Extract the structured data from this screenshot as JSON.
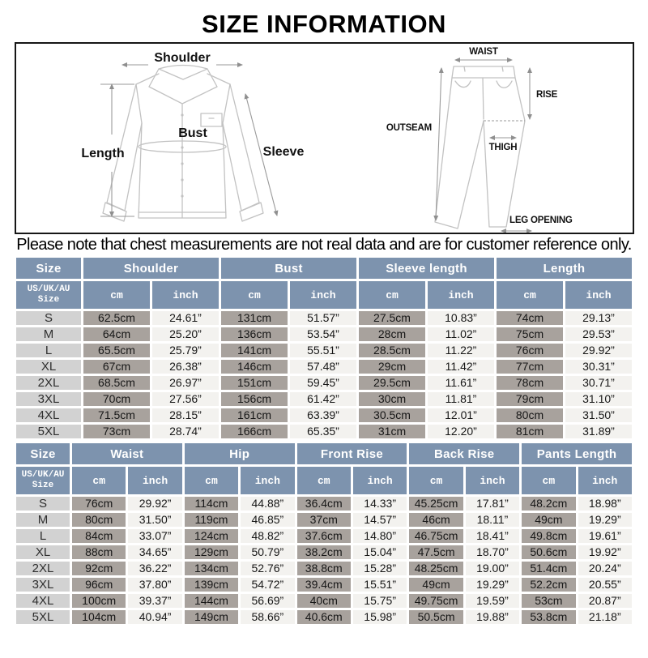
{
  "title": "SIZE INFORMATION",
  "note": "Please note that chest measurements are not real data and are for customer reference only.",
  "colors": {
    "header_bg": "#7d93ae",
    "header_text": "#ffffff",
    "size_col_bg": "#d2d2d2",
    "cm_cell_bg": "#a8a29d",
    "inch_cell_bg": "#f3f2ef"
  },
  "diagram": {
    "shirt": {
      "shoulder": "Shoulder",
      "length": "Length",
      "bust": "Bust",
      "sleeve": "Sleeve"
    },
    "pants": {
      "waist": "WAIST",
      "rise": "RISE",
      "outseam": "OUTSEAM",
      "thigh": "THIGH",
      "leg_opening": "LEG OPENING"
    }
  },
  "shirt_table": {
    "group_headers": [
      {
        "label": "Size",
        "span": 1
      },
      {
        "label": "Shoulder",
        "span": 2
      },
      {
        "label": "Bust",
        "span": 2
      },
      {
        "label": "Sleeve length",
        "span": 2
      },
      {
        "label": "Length",
        "span": 2
      }
    ],
    "sub_headers": [
      "US/UK/AU\nSize",
      "cm",
      "inch",
      "cm",
      "inch",
      "cm",
      "inch",
      "cm",
      "inch"
    ],
    "rows": [
      {
        "size": "S",
        "values": [
          "62.5cm",
          "24.61”",
          "131cm",
          "51.57”",
          "27.5cm",
          "10.83”",
          "74cm",
          "29.13”"
        ]
      },
      {
        "size": "M",
        "values": [
          "64cm",
          "25.20”",
          "136cm",
          "53.54”",
          "28cm",
          "11.02”",
          "75cm",
          "29.53”"
        ]
      },
      {
        "size": "L",
        "values": [
          "65.5cm",
          "25.79”",
          "141cm",
          "55.51”",
          "28.5cm",
          "11.22”",
          "76cm",
          "29.92”"
        ]
      },
      {
        "size": "XL",
        "values": [
          "67cm",
          "26.38”",
          "146cm",
          "57.48”",
          "29cm",
          "11.42”",
          "77cm",
          "30.31”"
        ]
      },
      {
        "size": "2XL",
        "values": [
          "68.5cm",
          "26.97”",
          "151cm",
          "59.45”",
          "29.5cm",
          "11.61”",
          "78cm",
          "30.71”"
        ]
      },
      {
        "size": "3XL",
        "values": [
          "70cm",
          "27.56”",
          "156cm",
          "61.42”",
          "30cm",
          "11.81”",
          "79cm",
          "31.10”"
        ]
      },
      {
        "size": "4XL",
        "values": [
          "71.5cm",
          "28.15”",
          "161cm",
          "63.39”",
          "30.5cm",
          "12.01”",
          "80cm",
          "31.50”"
        ]
      },
      {
        "size": "5XL",
        "values": [
          "73cm",
          "28.74”",
          "166cm",
          "65.35”",
          "31cm",
          "12.20”",
          "81cm",
          "31.89”"
        ]
      }
    ]
  },
  "pants_table": {
    "group_headers": [
      {
        "label": "Size",
        "span": 1
      },
      {
        "label": "Waist",
        "span": 2
      },
      {
        "label": "Hip",
        "span": 2
      },
      {
        "label": "Front Rise",
        "span": 2
      },
      {
        "label": "Back Rise",
        "span": 2
      },
      {
        "label": "Pants Length",
        "span": 2
      }
    ],
    "sub_headers": [
      "US/UK/AU\nSize",
      "cm",
      "inch",
      "cm",
      "inch",
      "cm",
      "inch",
      "cm",
      "inch",
      "cm",
      "inch"
    ],
    "rows": [
      {
        "size": "S",
        "values": [
          "76cm",
          "29.92”",
          "114cm",
          "44.88”",
          "36.4cm",
          "14.33”",
          "45.25cm",
          "17.81”",
          "48.2cm",
          "18.98”"
        ]
      },
      {
        "size": "M",
        "values": [
          "80cm",
          "31.50”",
          "119cm",
          "46.85”",
          "37cm",
          "14.57”",
          "46cm",
          "18.11”",
          "49cm",
          "19.29”"
        ]
      },
      {
        "size": "L",
        "values": [
          "84cm",
          "33.07”",
          "124cm",
          "48.82”",
          "37.6cm",
          "14.80”",
          "46.75cm",
          "18.41”",
          "49.8cm",
          "19.61”"
        ]
      },
      {
        "size": "XL",
        "values": [
          "88cm",
          "34.65”",
          "129cm",
          "50.79”",
          "38.2cm",
          "15.04”",
          "47.5cm",
          "18.70”",
          "50.6cm",
          "19.92”"
        ]
      },
      {
        "size": "2XL",
        "values": [
          "92cm",
          "36.22”",
          "134cm",
          "52.76”",
          "38.8cm",
          "15.28”",
          "48.25cm",
          "19.00”",
          "51.4cm",
          "20.24”"
        ]
      },
      {
        "size": "3XL",
        "values": [
          "96cm",
          "37.80”",
          "139cm",
          "54.72”",
          "39.4cm",
          "15.51”",
          "49cm",
          "19.29”",
          "52.2cm",
          "20.55”"
        ]
      },
      {
        "size": "4XL",
        "values": [
          "100cm",
          "39.37”",
          "144cm",
          "56.69”",
          "40cm",
          "15.75”",
          "49.75cm",
          "19.59”",
          "53cm",
          "20.87”"
        ]
      },
      {
        "size": "5XL",
        "values": [
          "104cm",
          "40.94”",
          "149cm",
          "58.66”",
          "40.6cm",
          "15.98”",
          "50.5cm",
          "19.88”",
          "53.8cm",
          "21.18”"
        ]
      }
    ]
  }
}
